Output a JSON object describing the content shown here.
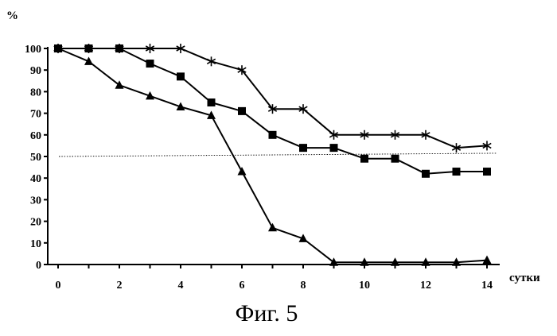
{
  "figure_caption": "Фиг. 5",
  "chart_data": {
    "type": "line",
    "title": "",
    "xlabel": "сутки",
    "ylabel": "%",
    "xlim": [
      0,
      14
    ],
    "ylim": [
      0,
      100
    ],
    "x_ticks": [
      0,
      2,
      4,
      6,
      8,
      10,
      12,
      14
    ],
    "y_ticks": [
      0,
      10,
      20,
      30,
      40,
      50,
      60,
      70,
      80,
      90,
      100
    ],
    "grid": false,
    "legend": "none",
    "reference_line": {
      "y_start": 50,
      "y_end": 51.5,
      "style": "dotted"
    },
    "series": [
      {
        "marker": "star",
        "color": "#000000",
        "x": [
          0,
          1,
          2,
          3,
          4,
          5,
          6,
          7,
          8,
          9,
          10,
          11,
          12,
          13,
          14
        ],
        "y": [
          100,
          100,
          100,
          100,
          100,
          94,
          90,
          72,
          72,
          60,
          60,
          60,
          60,
          54,
          55
        ]
      },
      {
        "marker": "square",
        "color": "#000000",
        "x": [
          0,
          1,
          2,
          3,
          4,
          5,
          6,
          7,
          8,
          9,
          10,
          11,
          12,
          13,
          14
        ],
        "y": [
          100,
          100,
          100,
          93,
          87,
          75,
          71,
          60,
          54,
          54,
          49,
          49,
          42,
          43,
          43
        ]
      },
      {
        "marker": "triangle",
        "color": "#000000",
        "x": [
          0,
          1,
          2,
          3,
          4,
          5,
          6,
          7,
          8,
          9,
          10,
          11,
          12,
          13,
          14
        ],
        "y": [
          100,
          94,
          83,
          78,
          73,
          69,
          43,
          17,
          12,
          1,
          1,
          1,
          1,
          1,
          2
        ]
      }
    ]
  }
}
